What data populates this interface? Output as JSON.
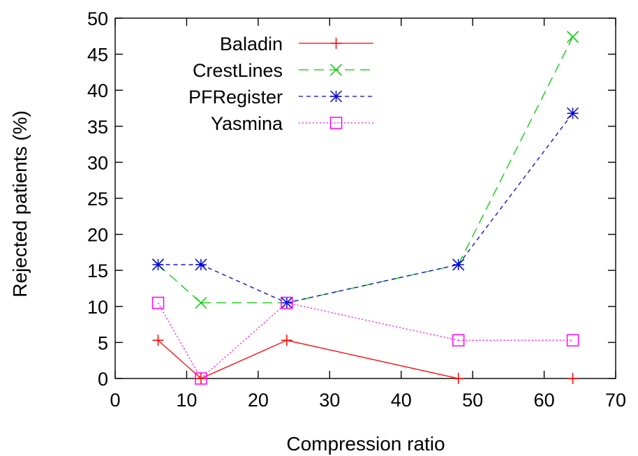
{
  "chart_data": {
    "type": "line",
    "title": "",
    "xlabel": "Compression ratio",
    "ylabel": "Rejected patients (%)",
    "xlim": [
      0,
      70
    ],
    "ylim": [
      0,
      50
    ],
    "xticks": [
      0,
      10,
      20,
      30,
      40,
      50,
      60,
      70
    ],
    "yticks": [
      0,
      5,
      10,
      15,
      20,
      25,
      30,
      35,
      40,
      45,
      50
    ],
    "grid": false,
    "legend_position": "top-left",
    "series": [
      {
        "name": "Baladin",
        "color": "#ff0000",
        "marker": "plus",
        "dash": "solid",
        "points": [
          [
            6,
            5.3
          ],
          [
            12,
            0
          ],
          [
            24,
            5.3
          ],
          [
            48,
            0
          ],
          [
            64,
            0
          ]
        ],
        "segments": [
          [
            0,
            1
          ],
          [
            1,
            2
          ],
          [
            2,
            3
          ]
        ]
      },
      {
        "name": "CrestLines",
        "color": "#00cc00",
        "marker": "cross",
        "dash": "dashed",
        "points": [
          [
            6,
            15.8
          ],
          [
            12,
            10.5
          ],
          [
            24,
            10.5
          ],
          [
            48,
            15.8
          ],
          [
            64,
            47.4
          ]
        ],
        "segments": [
          [
            0,
            1
          ],
          [
            1,
            2
          ],
          [
            2,
            3
          ],
          [
            3,
            4
          ]
        ]
      },
      {
        "name": "PFRegister",
        "color": "#0000dd",
        "marker": "star",
        "dash": "short-dashed",
        "points": [
          [
            6,
            15.8
          ],
          [
            12,
            15.8
          ],
          [
            24,
            10.5
          ],
          [
            48,
            15.8
          ],
          [
            64,
            36.8
          ]
        ],
        "segments": [
          [
            0,
            1
          ],
          [
            1,
            2
          ],
          [
            2,
            3
          ],
          [
            3,
            4
          ]
        ]
      },
      {
        "name": "Yasmina",
        "color": "#ff00ff",
        "marker": "square",
        "dash": "dotted",
        "points": [
          [
            6,
            10.5
          ],
          [
            12,
            0
          ],
          [
            24,
            10.5
          ],
          [
            48,
            5.3
          ],
          [
            64,
            5.3
          ]
        ],
        "segments": [
          [
            0,
            1
          ],
          [
            1,
            2
          ],
          [
            2,
            3
          ],
          [
            3,
            4
          ]
        ]
      }
    ]
  }
}
